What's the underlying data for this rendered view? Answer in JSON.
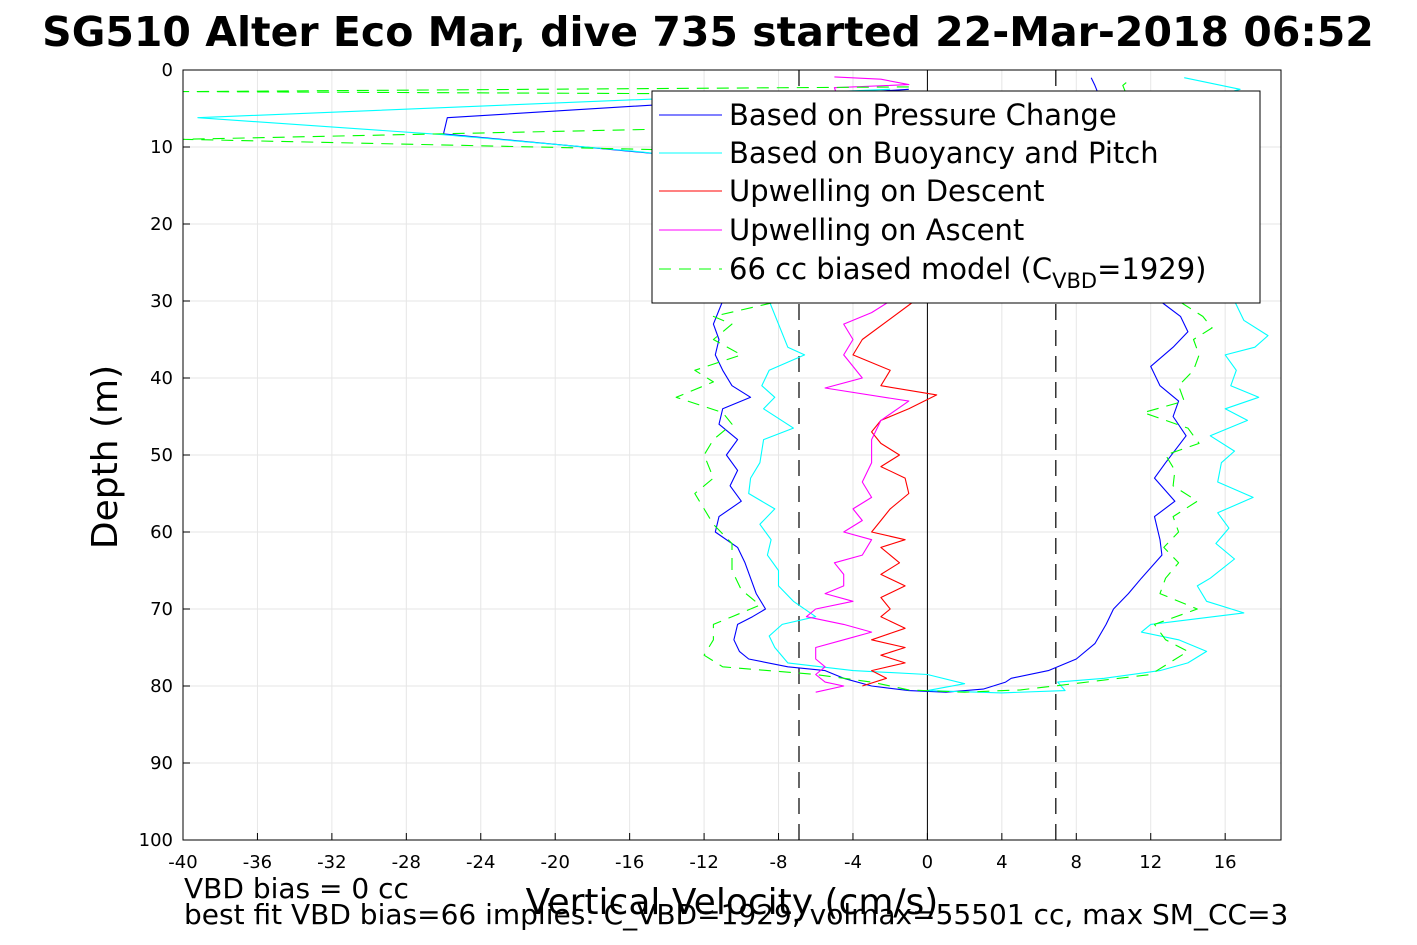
{
  "chart_data": {
    "type": "line",
    "title": "SG510 Alter Eco Mar, dive 735 started 22-Mar-2018 06:52",
    "xlabel": "Vertical Velocity (cm/s)",
    "ylabel": "Depth (m)",
    "xlim": [
      -40,
      19
    ],
    "ylim": [
      0,
      100
    ],
    "y_reversed": true,
    "grid": true,
    "x_ticks": [
      "-40",
      "-36",
      "-32",
      "-28",
      "-24",
      "-20",
      "-16",
      "-12",
      "-8",
      "-4",
      "0",
      "4",
      "8",
      "12",
      "16"
    ],
    "y_ticks": [
      "0",
      "10",
      "20",
      "30",
      "40",
      "50",
      "60",
      "70",
      "80",
      "90",
      "100"
    ],
    "legend_position": "top-right",
    "reference_lines": {
      "zero": 0,
      "dashed": [
        -6.9,
        6.9
      ]
    },
    "series": [
      {
        "name": "Based on Pressure Change",
        "color": "#0000ff",
        "style": "solid",
        "points": [
          [
            -1,
            2.5
          ],
          [
            -25.8,
            6.2
          ],
          [
            -26,
            8.3
          ],
          [
            -14,
            11
          ],
          [
            -2,
            13
          ],
          [
            -1.5,
            16
          ],
          [
            -1,
            20
          ],
          [
            -2,
            24
          ],
          [
            -4,
            27
          ],
          [
            -7,
            29.5
          ],
          [
            -11,
            30
          ],
          [
            -11.5,
            33
          ],
          [
            -11.2,
            35
          ],
          [
            -11.4,
            37
          ],
          [
            -11,
            39
          ],
          [
            -10.5,
            41
          ],
          [
            -9.5,
            42.5
          ],
          [
            -11,
            44
          ],
          [
            -11.2,
            46
          ],
          [
            -10.2,
            48
          ],
          [
            -10.8,
            50
          ],
          [
            -10.2,
            52
          ],
          [
            -10.6,
            54
          ],
          [
            -10,
            56
          ],
          [
            -11.2,
            58
          ],
          [
            -11.4,
            60
          ],
          [
            -10.2,
            62
          ],
          [
            -9.8,
            64
          ],
          [
            -9.5,
            66
          ],
          [
            -9.2,
            68
          ],
          [
            -8.7,
            70
          ],
          [
            -9.4,
            71
          ],
          [
            -10.2,
            72
          ],
          [
            -10.4,
            74
          ],
          [
            -10.1,
            75.5
          ],
          [
            -9.6,
            76.5
          ],
          [
            -7.5,
            77.5
          ],
          [
            -5.5,
            78
          ],
          [
            -4.5,
            79
          ],
          [
            -3,
            80
          ],
          [
            -1,
            80.6
          ],
          [
            1,
            80.8
          ],
          [
            3,
            80.4
          ],
          [
            4.2,
            79.5
          ],
          [
            4.5,
            79
          ],
          [
            6.5,
            78
          ],
          [
            8,
            76.5
          ],
          [
            9,
            74.5
          ],
          [
            9.6,
            72
          ],
          [
            10,
            70
          ],
          [
            10.8,
            68
          ],
          [
            11.5,
            66
          ],
          [
            12.6,
            63
          ],
          [
            12.5,
            61
          ],
          [
            12.2,
            58
          ],
          [
            13.3,
            56
          ],
          [
            12.2,
            53
          ],
          [
            12.8,
            51
          ],
          [
            13.9,
            47.5
          ],
          [
            13.2,
            45
          ],
          [
            13.5,
            43
          ],
          [
            12.5,
            41
          ],
          [
            12,
            38.5
          ],
          [
            13.2,
            36
          ],
          [
            14,
            34
          ],
          [
            13.6,
            32
          ],
          [
            12.5,
            30
          ],
          [
            11,
            25
          ],
          [
            10,
            20
          ],
          [
            10,
            15
          ],
          [
            9.5,
            10
          ],
          [
            9.5,
            5
          ],
          [
            9,
            2
          ],
          [
            8.8,
            1
          ]
        ]
      },
      {
        "name": "Based on Buoyancy and Pitch",
        "color": "#00ffff",
        "style": "solid",
        "points": [
          [
            -2,
            2.5
          ],
          [
            -39.2,
            6.2
          ],
          [
            -26,
            8.4
          ],
          [
            -16,
            10.5
          ],
          [
            -10,
            12
          ],
          [
            -2,
            13
          ],
          [
            -1,
            16
          ],
          [
            -1,
            20
          ],
          [
            -2,
            24
          ],
          [
            -4,
            27
          ],
          [
            -6,
            29.5
          ],
          [
            -8.5,
            30
          ],
          [
            -8,
            33
          ],
          [
            -7.5,
            36
          ],
          [
            -6.6,
            37
          ],
          [
            -8.5,
            39
          ],
          [
            -8.9,
            41
          ],
          [
            -8.2,
            42.5
          ],
          [
            -8.8,
            44
          ],
          [
            -7.2,
            46.5
          ],
          [
            -8.8,
            48
          ],
          [
            -9,
            51
          ],
          [
            -9.5,
            53
          ],
          [
            -9.6,
            55
          ],
          [
            -8.2,
            57
          ],
          [
            -9,
            59
          ],
          [
            -8.4,
            61
          ],
          [
            -8.6,
            63
          ],
          [
            -8,
            65
          ],
          [
            -8,
            67
          ],
          [
            -7.2,
            69
          ],
          [
            -6,
            71
          ],
          [
            -7.8,
            72
          ],
          [
            -8.5,
            73.5
          ],
          [
            -8.2,
            75
          ],
          [
            -7.5,
            77
          ],
          [
            -4,
            78
          ],
          [
            0,
            78.5
          ],
          [
            2,
            79.7
          ],
          [
            0,
            80.6
          ],
          [
            4,
            80.9
          ],
          [
            7.4,
            80.6
          ],
          [
            7,
            79.5
          ],
          [
            9.5,
            79
          ],
          [
            12.5,
            78
          ],
          [
            14,
            77
          ],
          [
            15,
            75.5
          ],
          [
            13.5,
            74
          ],
          [
            11.5,
            73
          ],
          [
            12,
            72
          ],
          [
            17,
            70.5
          ],
          [
            15,
            69
          ],
          [
            14.5,
            67
          ],
          [
            15.2,
            66
          ],
          [
            16.5,
            63.5
          ],
          [
            15.5,
            61.5
          ],
          [
            16.2,
            59.5
          ],
          [
            15.6,
            57.5
          ],
          [
            17.5,
            55.5
          ],
          [
            15.6,
            53.5
          ],
          [
            15.8,
            51
          ],
          [
            16.5,
            49.5
          ],
          [
            15.2,
            47.5
          ],
          [
            17.2,
            45.5
          ],
          [
            16,
            44
          ],
          [
            17.8,
            42.5
          ],
          [
            16.3,
            41
          ],
          [
            16.6,
            39
          ],
          [
            16,
            37
          ],
          [
            17.6,
            36
          ],
          [
            18.3,
            34.5
          ],
          [
            17,
            32.5
          ],
          [
            16.5,
            30
          ],
          [
            14,
            26
          ],
          [
            13,
            20
          ],
          [
            13,
            15
          ],
          [
            13,
            10
          ],
          [
            13,
            5
          ],
          [
            16.8,
            2.5
          ],
          [
            13.8,
            1
          ]
        ]
      },
      {
        "name": "Upwelling on Descent",
        "color": "#ff0000",
        "style": "solid",
        "points": [
          [
            -0.5,
            27
          ],
          [
            -1.2,
            28.5
          ],
          [
            -0.7,
            30
          ],
          [
            -3.5,
            35
          ],
          [
            -4,
            37
          ],
          [
            -2,
            39
          ],
          [
            -2.5,
            41
          ],
          [
            0.5,
            42.2
          ],
          [
            -1,
            44
          ],
          [
            -2.5,
            45.5
          ],
          [
            -3,
            47
          ],
          [
            -2.5,
            48.5
          ],
          [
            -1.5,
            50
          ],
          [
            -2.5,
            51.5
          ],
          [
            -1.2,
            53
          ],
          [
            -1,
            55
          ],
          [
            -2,
            57
          ],
          [
            -2.5,
            58.5
          ],
          [
            -3,
            60
          ],
          [
            -1.2,
            61
          ],
          [
            -2.5,
            62
          ],
          [
            -1.5,
            64
          ],
          [
            -2.5,
            65.5
          ],
          [
            -1.2,
            67
          ],
          [
            -2.5,
            68.5
          ],
          [
            -2,
            70
          ],
          [
            -2.5,
            71
          ],
          [
            -1.2,
            72.5
          ],
          [
            -3,
            74
          ],
          [
            -1.2,
            75
          ],
          [
            -2.5,
            76
          ],
          [
            -1.2,
            77
          ],
          [
            -3,
            78
          ],
          [
            -2.2,
            79
          ],
          [
            -3.5,
            80
          ]
        ]
      },
      {
        "name": "Upwelling on Ascent",
        "color": "#ff00ff",
        "style": "solid",
        "points": [
          [
            -5,
            0.9
          ],
          [
            -2.5,
            1.2
          ],
          [
            -1,
            1.9
          ],
          [
            -5,
            2.3
          ],
          [
            -1.5,
            26
          ],
          [
            -2,
            30
          ],
          [
            -3,
            31.5
          ],
          [
            -4.5,
            33
          ],
          [
            -4,
            35
          ],
          [
            -4.5,
            37
          ],
          [
            -4,
            38.5
          ],
          [
            -3.5,
            40
          ],
          [
            -5.5,
            41.3
          ],
          [
            -1,
            43
          ],
          [
            -2.5,
            45.5
          ],
          [
            -3,
            48
          ],
          [
            -3,
            51
          ],
          [
            -3.5,
            53.5
          ],
          [
            -3,
            55.5
          ],
          [
            -4,
            57
          ],
          [
            -3.5,
            58.5
          ],
          [
            -4.5,
            60
          ],
          [
            -3,
            61
          ],
          [
            -3.5,
            63
          ],
          [
            -5,
            64
          ],
          [
            -4.5,
            65.5
          ],
          [
            -4.5,
            67
          ],
          [
            -5.5,
            68
          ],
          [
            -4,
            69
          ],
          [
            -6,
            70
          ],
          [
            -6.5,
            71
          ],
          [
            -4.5,
            72
          ],
          [
            -3,
            73
          ],
          [
            -4.5,
            74
          ],
          [
            -6,
            75
          ],
          [
            -6,
            76.5
          ],
          [
            -5.5,
            77.5
          ],
          [
            -6,
            78.5
          ],
          [
            -5.5,
            79.5
          ],
          [
            -4.5,
            80
          ],
          [
            -6,
            80.8
          ]
        ]
      },
      {
        "name": "66 cc biased model (C",
        "color": "#00ff00",
        "style": "dashed",
        "points": [
          [
            -1,
            2.2
          ],
          [
            -40,
            2.8
          ],
          [
            -2,
            3.2
          ],
          [
            -1,
            4
          ],
          [
            -1,
            7
          ],
          [
            -40,
            9
          ],
          [
            -2,
            11
          ],
          [
            -1.5,
            16
          ],
          [
            -1.5,
            20
          ],
          [
            -2,
            24
          ],
          [
            -4,
            27
          ],
          [
            -7,
            29.5
          ],
          [
            -11.5,
            32
          ],
          [
            -10.5,
            33
          ],
          [
            -11.5,
            35
          ],
          [
            -10,
            37
          ],
          [
            -12.5,
            39
          ],
          [
            -11.5,
            40.5
          ],
          [
            -13.5,
            42.5
          ],
          [
            -11,
            44.5
          ],
          [
            -10.5,
            46
          ],
          [
            -11.5,
            48
          ],
          [
            -12,
            50
          ],
          [
            -11.5,
            53
          ],
          [
            -12.5,
            55
          ],
          [
            -12,
            57
          ],
          [
            -11.5,
            59
          ],
          [
            -10.5,
            61.5
          ],
          [
            -10.5,
            63
          ],
          [
            -10.5,
            65
          ],
          [
            -10,
            67.5
          ],
          [
            -9,
            69.5
          ],
          [
            -10.5,
            71
          ],
          [
            -11.5,
            72
          ],
          [
            -11.5,
            74
          ],
          [
            -12,
            76
          ],
          [
            -11,
            77.5
          ],
          [
            -6,
            78.5
          ],
          [
            -3,
            79.5
          ],
          [
            -1,
            80.5
          ],
          [
            2,
            80.8
          ],
          [
            5,
            80.5
          ],
          [
            7.5,
            79.8
          ],
          [
            12,
            78.5
          ],
          [
            13,
            77
          ],
          [
            14,
            75.5
          ],
          [
            12.8,
            74
          ],
          [
            12.2,
            72
          ],
          [
            14.5,
            70
          ],
          [
            12.5,
            68
          ],
          [
            12.8,
            66
          ],
          [
            13.5,
            64
          ],
          [
            12.7,
            62
          ],
          [
            13.5,
            60
          ],
          [
            13.2,
            58
          ],
          [
            14.5,
            56
          ],
          [
            13.2,
            54
          ],
          [
            13.3,
            52
          ],
          [
            12.8,
            50
          ],
          [
            14.6,
            48.5
          ],
          [
            14,
            46.5
          ],
          [
            11.6,
            44.5
          ],
          [
            13.8,
            43
          ],
          [
            13.5,
            41
          ],
          [
            14.3,
            39
          ],
          [
            14.6,
            37
          ],
          [
            14.3,
            35
          ],
          [
            15.3,
            33.5
          ],
          [
            14.8,
            32
          ],
          [
            13.5,
            30
          ],
          [
            12,
            25
          ],
          [
            11,
            20
          ],
          [
            11,
            15
          ],
          [
            10.5,
            10
          ],
          [
            11,
            5
          ],
          [
            10.5,
            2
          ],
          [
            11,
            1
          ]
        ]
      }
    ]
  },
  "legend": {
    "items": [
      "Based on Pressure Change",
      "Based on Buoyancy and Pitch",
      "Upwelling on Descent",
      "Upwelling on Ascent",
      "66 cc biased model (C"
    ],
    "subscript": "VBD",
    "suffix": "=1929)"
  },
  "notes": {
    "vbd_bias": "VBD bias = 0 cc",
    "best_fit": "best fit VBD bias=66 implies: C_VBD=1929, volmax=55501 cc, max SM_CC=3"
  }
}
